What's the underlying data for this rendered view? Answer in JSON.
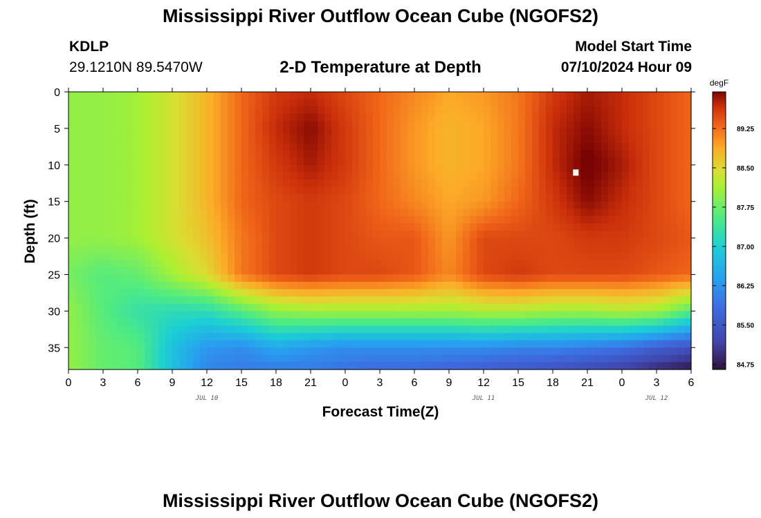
{
  "title_top": "Mississippi River Outflow Ocean Cube (NGOFS2)",
  "title_bottom": "Mississippi River Outflow Ocean Cube (NGOFS2)",
  "station": {
    "id": "KDLP",
    "location": "29.1210N  89.5470W"
  },
  "model": {
    "label": "Model Start Time",
    "value": "07/10/2024 Hour 09"
  },
  "chart_data": {
    "type": "heatmap",
    "title": "2-D Temperature at Depth",
    "xlabel": "Forecast Time(Z)",
    "ylabel": "Depth (ft)",
    "x_tick_labels": [
      "0",
      "3",
      "6",
      "9",
      "12",
      "15",
      "18",
      "21",
      "0",
      "3",
      "6",
      "9",
      "12",
      "15",
      "18",
      "21",
      "0",
      "3",
      "6"
    ],
    "x_range_hours": [
      0,
      54
    ],
    "date_labels": [
      {
        "text": "JUL 10",
        "hour": 12
      },
      {
        "text": "JUL 11",
        "hour": 36
      },
      {
        "text": "JUL 12",
        "hour": 51
      }
    ],
    "y_ticks": [
      0,
      5,
      10,
      15,
      20,
      25,
      30,
      35
    ],
    "y_range": [
      0,
      38
    ],
    "y_inverted": true,
    "colorbar": {
      "unit": "degF",
      "min": 84.65,
      "max": 89.95,
      "tick_values": [
        84.75,
        85.5,
        86.25,
        87.0,
        87.75,
        88.5,
        89.25
      ],
      "tick_labels": [
        "84.75",
        "85.50",
        "86.25",
        "87.00",
        "87.75",
        "88.50",
        "89.25"
      ]
    },
    "marker": {
      "hour": 44,
      "depth": 11
    },
    "field": {
      "hours": [
        0,
        3,
        6,
        9,
        12,
        15,
        18,
        21,
        24,
        27,
        30,
        33,
        36,
        39,
        42,
        45,
        48,
        51,
        54
      ],
      "depths": [
        0,
        5,
        10,
        15,
        20,
        25,
        30,
        35,
        38
      ],
      "note": "temperature (degF), rows = depths, cols = hours",
      "values": [
        [
          88.0,
          88.0,
          88.1,
          88.4,
          88.8,
          89.3,
          89.6,
          89.7,
          89.5,
          89.3,
          89.1,
          88.9,
          89.0,
          89.2,
          89.6,
          89.8,
          89.7,
          89.5,
          89.3
        ],
        [
          88.0,
          88.0,
          88.1,
          88.4,
          88.8,
          89.3,
          89.7,
          89.9,
          89.6,
          89.3,
          89.0,
          88.8,
          88.9,
          89.2,
          89.7,
          89.9,
          89.7,
          89.5,
          89.3
        ],
        [
          88.0,
          88.0,
          88.1,
          88.4,
          88.8,
          89.3,
          89.6,
          89.8,
          89.6,
          89.3,
          89.0,
          88.8,
          88.9,
          89.2,
          89.7,
          90.0,
          89.8,
          89.5,
          89.3
        ],
        [
          88.0,
          88.0,
          88.1,
          88.4,
          88.8,
          89.3,
          89.5,
          89.6,
          89.5,
          89.3,
          89.1,
          88.9,
          89.0,
          89.3,
          89.6,
          89.9,
          89.7,
          89.5,
          89.3
        ],
        [
          88.0,
          88.0,
          88.1,
          88.4,
          88.7,
          89.2,
          89.5,
          89.6,
          89.5,
          89.4,
          89.4,
          89.0,
          89.5,
          89.5,
          89.5,
          89.6,
          89.6,
          89.5,
          89.4
        ],
        [
          87.8,
          87.6,
          87.7,
          88.1,
          88.5,
          89.2,
          89.5,
          89.6,
          89.5,
          89.5,
          89.4,
          89.1,
          89.5,
          89.6,
          89.5,
          89.5,
          89.5,
          89.4,
          89.3
        ],
        [
          88.0,
          87.6,
          87.3,
          87.2,
          87.2,
          87.6,
          88.0,
          88.1,
          88.1,
          88.1,
          88.1,
          88.1,
          88.2,
          88.2,
          88.1,
          88.1,
          88.2,
          88.1,
          87.6
        ],
        [
          88.0,
          87.7,
          87.6,
          86.8,
          86.3,
          86.2,
          86.5,
          86.3,
          86.2,
          86.2,
          86.2,
          86.2,
          86.2,
          86.1,
          86.1,
          86.0,
          85.9,
          85.6,
          85.4
        ],
        [
          88.0,
          87.7,
          87.6,
          86.8,
          86.1,
          86.0,
          86.0,
          86.0,
          85.9,
          85.8,
          85.8,
          85.7,
          85.6,
          85.5,
          85.4,
          85.3,
          85.1,
          84.9,
          84.7
        ]
      ]
    }
  }
}
